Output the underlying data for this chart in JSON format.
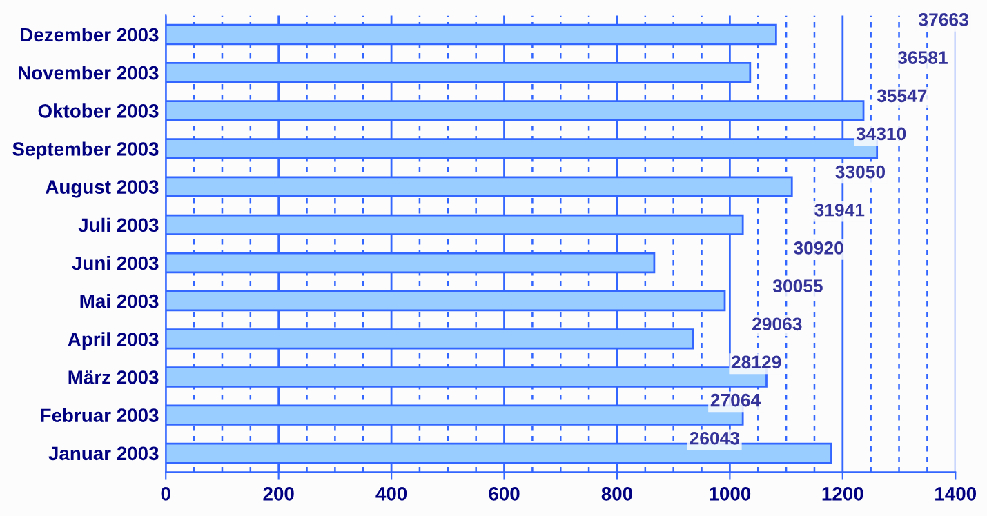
{
  "chart_data": {
    "type": "bar",
    "orientation": "horizontal",
    "categories": [
      "Dezember 2003",
      "November 2003",
      "Oktober 2003",
      "September 2003",
      "August 2003",
      "Juli 2003",
      "Juni 2003",
      "Mai 2003",
      "April 2003",
      "März 2003",
      "Februar 2003",
      "Januar 2003"
    ],
    "values": [
      1082,
      1036,
      1237,
      1261,
      1110,
      1023,
      866,
      991,
      935,
      1065,
      1023,
      1180
    ],
    "color": "#99ccff",
    "xlim": [
      0,
      1400
    ],
    "xticks": [
      0,
      {
        "value": 50,
        "label": null
      },
      {
        "value": 100,
        "label": null
      },
      {
        "value": 150,
        "label": null
      },
      200,
      {
        "value": 250,
        "label": null
      },
      {
        "value": 300,
        "label": null
      },
      {
        "value": 350,
        "label": null
      },
      400,
      {
        "value": 450,
        "label": null
      },
      {
        "value": 500,
        "label": null
      },
      {
        "value": 550,
        "label": null
      },
      600,
      {
        "value": 650,
        "label": null
      },
      {
        "value": 700,
        "label": null
      },
      {
        "value": 750,
        "label": null
      },
      800,
      {
        "value": 850,
        "label": null
      },
      {
        "value": 900,
        "label": null
      },
      {
        "value": 950,
        "label": null
      },
      1000,
      {
        "value": 1050,
        "label": null
      },
      {
        "value": 1100,
        "label": null
      },
      {
        "value": 1150,
        "label": null
      },
      1200,
      {
        "value": 1250,
        "label": null
      },
      {
        "value": 1300,
        "label": null
      },
      {
        "value": 1350,
        "label": null
      },
      1400
    ],
    "grid": "x",
    "annotations": [
      "37663",
      "36581",
      "35547",
      "34310",
      "33050",
      "31941",
      "30920",
      "30055",
      "29063",
      "28129",
      "27064",
      "26043"
    ]
  }
}
